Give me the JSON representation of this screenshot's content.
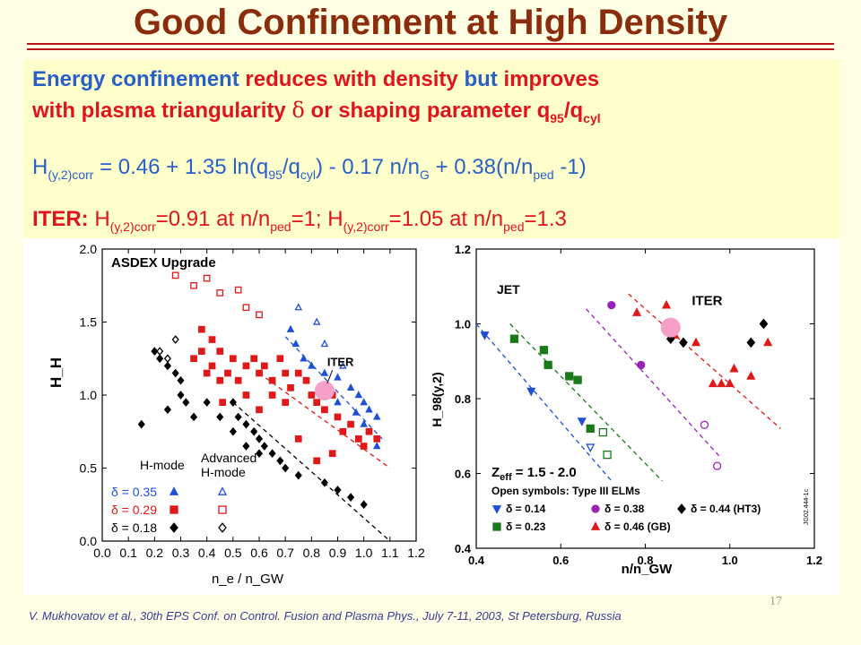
{
  "slide": {
    "title": "Good Confinement at High Density",
    "line1": {
      "a": "Energy confinement ",
      "b": "reduces with density ",
      "c": "but ",
      "d": "improves"
    },
    "line2": {
      "a": "with plasma triangularity ",
      "delta": "δ",
      "b": " or shaping parameter q",
      "sub95": "95",
      "slash": "/q",
      "subcyl": "cyl"
    },
    "formula": {
      "h": "H",
      "hsub": "(y,2)corr",
      "t1": " = 0.46 + 1.35 ln(q",
      "s95": "95",
      "t2": "/q",
      "scyl": "cyl",
      "t3": ") - 0.17 n/n",
      "sG": "G",
      "t4": " + 0.38(n/n",
      "sped": "ped",
      "t5": " -1)"
    },
    "iter": {
      "label": "ITER:",
      "h1": " H",
      "h1sub": "(y,2)corr",
      "v1": "=0.91 at n/n",
      "p1": "ped",
      "e1": "=1; H",
      "h2sub": "(y,2)corr",
      "v2": "=1.05 at n/n",
      "p2": "ped",
      "e2": "=1.3"
    },
    "citation": "V. Mukhovatov et al., 30th EPS Conf. on Control. Fusion and Plasma Phys., July 7-11, 2003, St Petersburg, Russia",
    "page_number": "17"
  },
  "chart_data": [
    {
      "type": "scatter",
      "title": "ASDEX Upgrade",
      "xlabel": "n_e / n_GW",
      "ylabel": "H_H",
      "xlim": [
        0.0,
        1.2
      ],
      "ylim": [
        0.0,
        2.0
      ],
      "xticks": [
        "0.0",
        "0.1",
        "0.2",
        "0.3",
        "0.4",
        "0.5",
        "0.6",
        "0.7",
        "0.8",
        "0.9",
        "1.0",
        "1.1",
        "1.2"
      ],
      "yticks": [
        "0.0",
        "0.5",
        "1.0",
        "1.5",
        "2.0"
      ],
      "legend_heading_1": "H-mode",
      "legend_heading_2a": "Advanced",
      "legend_heading_2b": "H-mode",
      "legend": [
        {
          "label": "δ = 0.35",
          "color": "#1f4fd8"
        },
        {
          "label": "δ = 0.29",
          "color": "#e01818"
        },
        {
          "label": "δ = 0.18",
          "color": "#000000"
        }
      ],
      "iter_label": "ITER",
      "iter_point": [
        0.85,
        1.03
      ],
      "series": [
        {
          "symbol": "triangle",
          "color": "#1f4fd8",
          "filled": true,
          "points": [
            [
              0.72,
              1.45
            ],
            [
              0.74,
              1.35
            ],
            [
              0.77,
              1.25
            ],
            [
              0.8,
              1.2
            ],
            [
              0.85,
              1.15
            ],
            [
              0.9,
              1.12
            ],
            [
              0.95,
              1.05
            ],
            [
              0.98,
              1.0
            ],
            [
              1.0,
              0.95
            ],
            [
              1.02,
              0.9
            ],
            [
              1.05,
              0.85
            ],
            [
              1.0,
              0.8
            ],
            [
              1.05,
              0.65
            ],
            [
              0.97,
              0.88
            ],
            [
              0.9,
              0.95
            ]
          ]
        },
        {
          "symbol": "triangle",
          "color": "#1f4fd8",
          "filled": false,
          "points": [
            [
              0.75,
              1.6
            ],
            [
              0.82,
              1.5
            ],
            [
              0.85,
              1.35
            ],
            [
              0.92,
              1.2
            ]
          ]
        },
        {
          "symbol": "square",
          "color": "#e01818",
          "filled": true,
          "points": [
            [
              0.35,
              1.25
            ],
            [
              0.38,
              1.3
            ],
            [
              0.4,
              1.15
            ],
            [
              0.42,
              1.2
            ],
            [
              0.45,
              1.3
            ],
            [
              0.48,
              1.15
            ],
            [
              0.5,
              1.25
            ],
            [
              0.52,
              1.1
            ],
            [
              0.55,
              1.2
            ],
            [
              0.58,
              1.25
            ],
            [
              0.6,
              1.15
            ],
            [
              0.62,
              1.2
            ],
            [
              0.65,
              1.1
            ],
            [
              0.68,
              1.25
            ],
            [
              0.7,
              1.15
            ],
            [
              0.72,
              1.05
            ],
            [
              0.75,
              1.15
            ],
            [
              0.78,
              1.1
            ],
            [
              0.8,
              1.0
            ],
            [
              0.82,
              0.95
            ],
            [
              0.85,
              0.9
            ],
            [
              0.88,
              1.0
            ],
            [
              0.9,
              0.85
            ],
            [
              0.92,
              0.75
            ],
            [
              0.95,
              0.8
            ],
            [
              0.98,
              0.7
            ],
            [
              1.0,
              0.65
            ],
            [
              1.02,
              0.75
            ],
            [
              1.05,
              0.7
            ],
            [
              0.88,
              0.6
            ],
            [
              0.82,
              0.55
            ],
            [
              0.75,
              0.7
            ],
            [
              0.7,
              0.95
            ],
            [
              0.65,
              1.0
            ],
            [
              0.6,
              0.9
            ],
            [
              0.55,
              1.0
            ],
            [
              0.45,
              1.1
            ],
            [
              0.42,
              1.38
            ],
            [
              0.38,
              1.45
            ],
            [
              0.46,
              0.95
            ]
          ]
        },
        {
          "symbol": "square",
          "color": "#e01818",
          "filled": false,
          "points": [
            [
              0.28,
              1.82
            ],
            [
              0.35,
              1.75
            ],
            [
              0.4,
              1.8
            ],
            [
              0.45,
              1.7
            ],
            [
              0.52,
              1.72
            ],
            [
              0.55,
              1.6
            ],
            [
              0.6,
              1.55
            ]
          ]
        },
        {
          "symbol": "diamond",
          "color": "#000000",
          "filled": true,
          "points": [
            [
              0.2,
              1.3
            ],
            [
              0.22,
              1.25
            ],
            [
              0.25,
              1.2
            ],
            [
              0.28,
              1.15
            ],
            [
              0.3,
              1.0
            ],
            [
              0.32,
              0.95
            ],
            [
              0.35,
              0.85
            ],
            [
              0.4,
              0.95
            ],
            [
              0.45,
              0.85
            ],
            [
              0.5,
              0.95
            ],
            [
              0.52,
              0.85
            ],
            [
              0.55,
              0.8
            ],
            [
              0.58,
              0.75
            ],
            [
              0.6,
              0.7
            ],
            [
              0.62,
              0.65
            ],
            [
              0.65,
              0.6
            ],
            [
              0.68,
              0.55
            ],
            [
              0.7,
              0.5
            ],
            [
              0.75,
              0.45
            ],
            [
              0.85,
              0.4
            ],
            [
              0.9,
              0.35
            ],
            [
              0.95,
              0.3
            ],
            [
              1.0,
              0.25
            ],
            [
              0.15,
              0.8
            ],
            [
              0.25,
              0.9
            ],
            [
              0.3,
              1.1
            ],
            [
              0.5,
              0.75
            ],
            [
              0.55,
              0.65
            ],
            [
              0.6,
              0.6
            ]
          ]
        },
        {
          "symbol": "diamond",
          "color": "#000000",
          "filled": false,
          "points": [
            [
              0.22,
              1.3
            ],
            [
              0.25,
              1.25
            ],
            [
              0.28,
              1.38
            ]
          ]
        }
      ]
    },
    {
      "type": "scatter",
      "title": "JET",
      "xlabel": "n/n_GW",
      "ylabel": "H_98(y,2)",
      "xlim": [
        0.4,
        1.2
      ],
      "ylim": [
        0.4,
        1.2
      ],
      "xticks": [
        "0.4",
        "0.6",
        "0.8",
        "1.0",
        "1.2"
      ],
      "yticks": [
        "0.4",
        "0.6",
        "0.8",
        "1.0",
        "1.2"
      ],
      "zeff_text": "Z",
      "zeff_sub": "eff",
      "zeff_value": " = 1.5 - 2.0",
      "open_symbols_note": "Open symbols:  Type III ELMs",
      "legend": [
        {
          "label": "δ = 0.14",
          "color": "#1f4fd8"
        },
        {
          "label": "δ = 0.23",
          "color": "#1a7a1a"
        },
        {
          "label": "δ = 0.38",
          "color": "#9a22b5"
        },
        {
          "label": "δ = 0.46 (GB)",
          "color": "#e01818"
        },
        {
          "label": "δ = 0.44 (HT3)",
          "color": "#000000"
        }
      ],
      "iter_label": "ITER",
      "iter_point": [
        0.86,
        0.99
      ],
      "code": "JG02.444-1c",
      "series": [
        {
          "symbol": "triangle-down",
          "color": "#1f4fd8",
          "filled": true,
          "points": [
            [
              0.42,
              0.97
            ],
            [
              0.53,
              0.82
            ],
            [
              0.65,
              0.74
            ]
          ]
        },
        {
          "symbol": "triangle-down",
          "color": "#1f4fd8",
          "filled": false,
          "points": [
            [
              0.67,
              0.67
            ]
          ]
        },
        {
          "symbol": "square",
          "color": "#1a7a1a",
          "filled": true,
          "points": [
            [
              0.49,
              0.96
            ],
            [
              0.56,
              0.93
            ],
            [
              0.57,
              0.89
            ],
            [
              0.62,
              0.86
            ],
            [
              0.64,
              0.85
            ],
            [
              0.67,
              0.72
            ]
          ]
        },
        {
          "symbol": "square",
          "color": "#1a7a1a",
          "filled": false,
          "points": [
            [
              0.7,
              0.71
            ],
            [
              0.71,
              0.65
            ]
          ]
        },
        {
          "symbol": "circle",
          "color": "#9a22b5",
          "filled": true,
          "points": [
            [
              0.72,
              1.05
            ],
            [
              0.79,
              0.89
            ]
          ]
        },
        {
          "symbol": "circle",
          "color": "#9a22b5",
          "filled": false,
          "points": [
            [
              0.94,
              0.73
            ],
            [
              0.97,
              0.62
            ]
          ]
        },
        {
          "symbol": "triangle",
          "color": "#e01818",
          "filled": true,
          "points": [
            [
              0.78,
              1.03
            ],
            [
              0.85,
              1.05
            ],
            [
              0.87,
              0.97
            ],
            [
              0.92,
              0.95
            ],
            [
              0.96,
              0.84
            ],
            [
              0.98,
              0.84
            ],
            [
              1.0,
              0.84
            ],
            [
              1.01,
              0.88
            ],
            [
              1.05,
              0.86
            ],
            [
              1.09,
              0.95
            ]
          ]
        },
        {
          "symbol": "diamond",
          "color": "#000000",
          "filled": true,
          "points": [
            [
              0.86,
              0.96
            ],
            [
              0.89,
              0.95
            ],
            [
              1.05,
              0.95
            ],
            [
              1.08,
              1.0
            ]
          ]
        }
      ]
    }
  ]
}
